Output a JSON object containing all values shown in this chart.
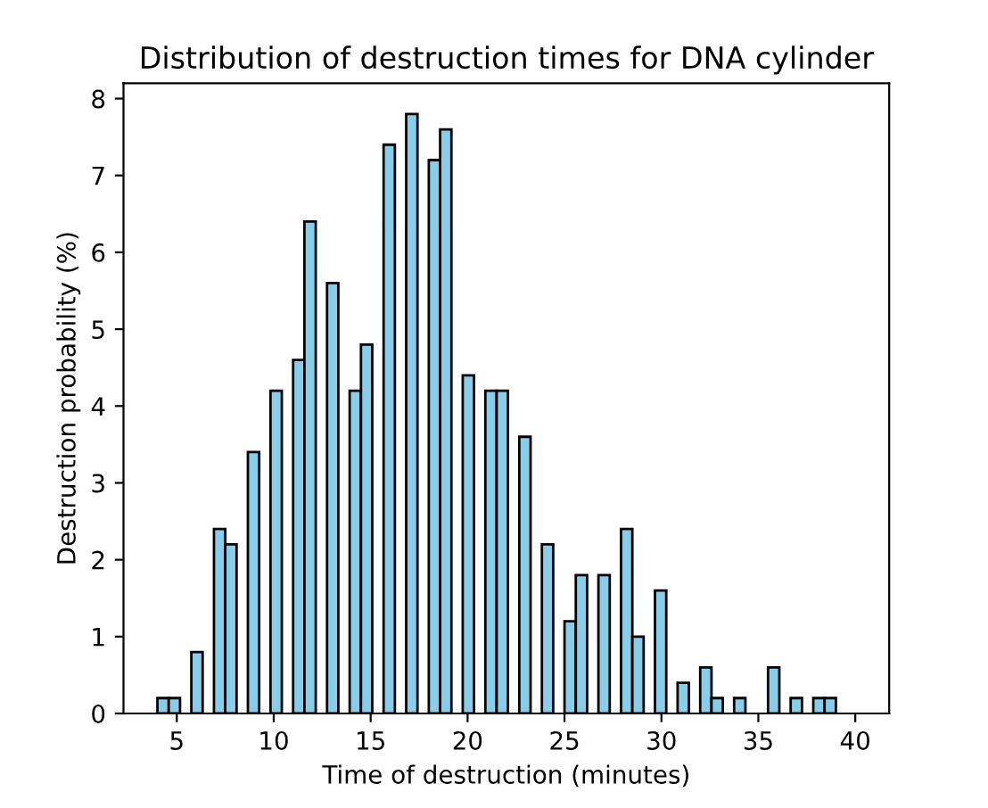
{
  "chart_data": {
    "type": "histogram",
    "title": "Distribution of destruction times for DNA cylinder",
    "xlabel": "Time of destruction (minutes)",
    "ylabel": "Destruction probability (%)",
    "bins": [
      4,
      4.5833,
      5.1667,
      5.75,
      6.3333,
      6.9167,
      7.5,
      8.0833,
      8.6667,
      9.25,
      9.8333,
      10.4167,
      11,
      11.5833,
      12.1667,
      12.75,
      13.3333,
      13.9167,
      14.5,
      15.0833,
      15.6667,
      16.25,
      16.8333,
      17.4167,
      18,
      18.5833,
      19.1667,
      19.75,
      20.3333,
      20.9167,
      21.5,
      22.0833,
      22.6667,
      23.25,
      23.8333,
      24.4167,
      25,
      25.5833,
      26.1667,
      26.75,
      27.3333,
      27.9167,
      28.5,
      29.0833,
      29.6667,
      30.25,
      30.8333,
      31.4167,
      32,
      32.5833,
      33.1667,
      33.75,
      34.3333,
      34.9167,
      35.5,
      36.0833,
      36.6667,
      37.25,
      37.8333,
      38.4167,
      39
    ],
    "values": [
      0.2,
      0.2,
      0,
      0.8,
      0,
      2.4,
      2.2,
      0,
      3.4,
      0,
      4.2,
      0,
      4.6,
      6.4,
      0,
      5.6,
      0,
      4.2,
      4.8,
      0,
      7.4,
      0,
      7.8,
      0,
      7.2,
      7.6,
      0,
      4.4,
      0,
      4.2,
      4.2,
      0,
      3.6,
      0,
      2.2,
      0,
      1.2,
      1.8,
      0,
      1.8,
      0,
      2.4,
      1.0,
      0,
      1.6,
      0,
      0.4,
      0,
      0.6,
      0.2,
      0,
      0.2,
      0,
      0,
      0.6,
      0,
      0.2,
      0,
      0.2,
      0.2
    ],
    "color": "#87ceeb",
    "xlim": [
      2.25,
      41.75
    ],
    "ylim": [
      0,
      8.2
    ],
    "xticks": [
      5,
      10,
      15,
      20,
      25,
      30,
      35,
      40
    ],
    "yticks": [
      0,
      1,
      2,
      3,
      4,
      5,
      6,
      7,
      8
    ],
    "grid": false
  }
}
